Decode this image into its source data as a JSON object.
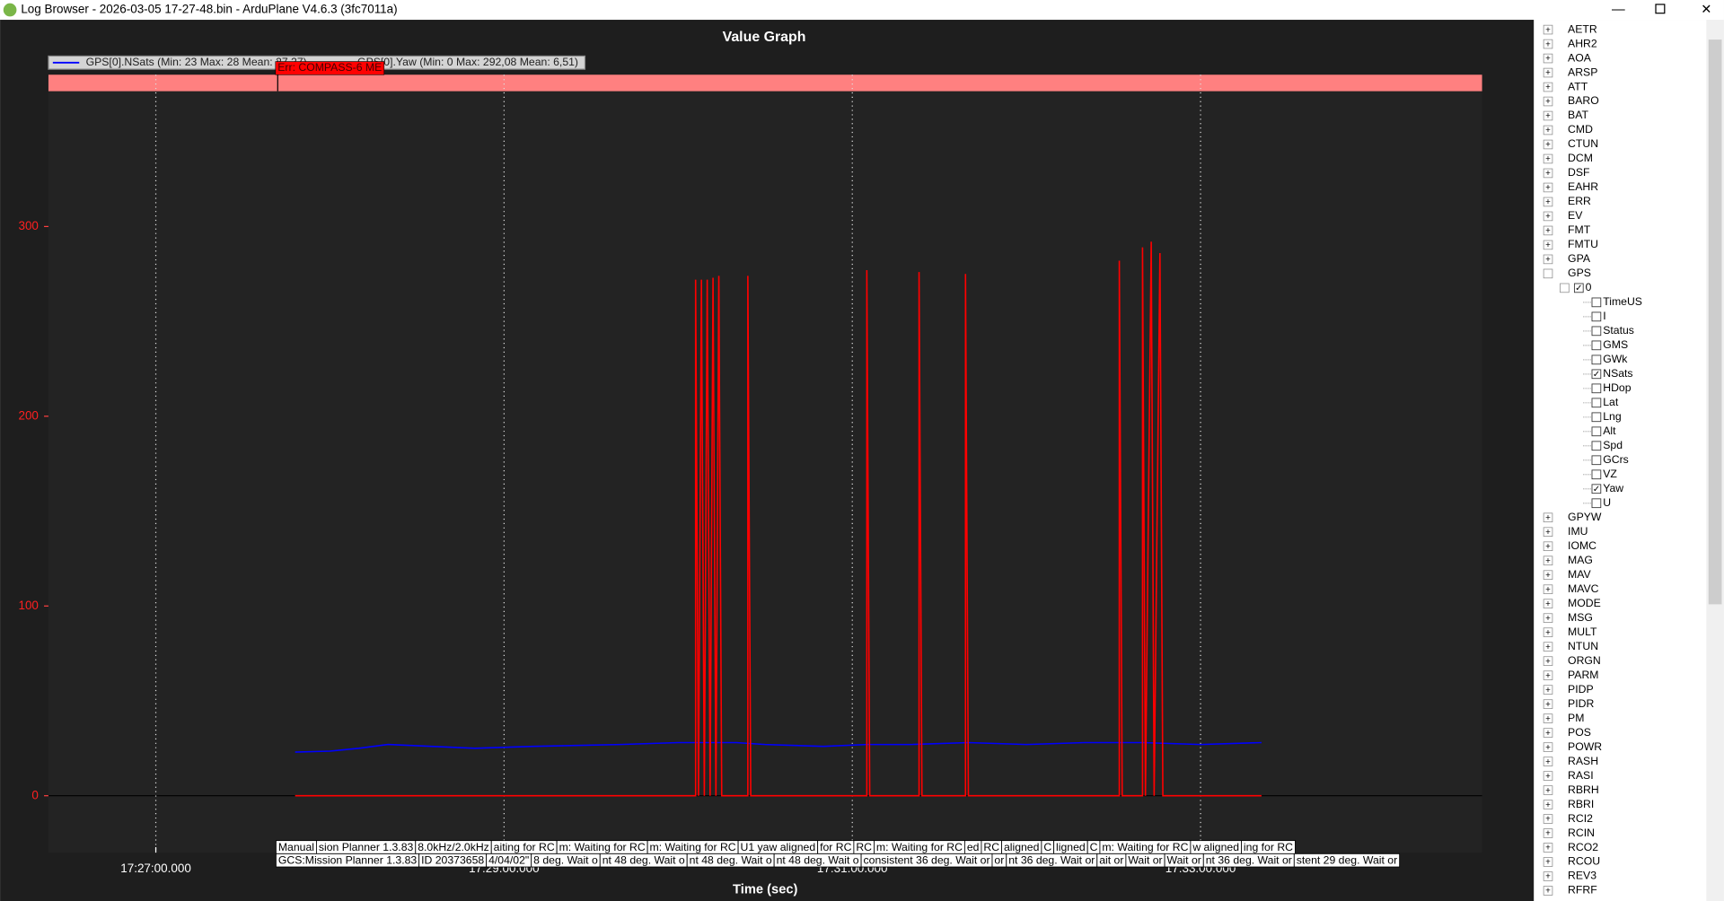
{
  "window_title": "Log Browser - 2026-03-05 17-27-48.bin - ArduPlane V4.6.3 (3fc7011a)",
  "chart_data": {
    "type": "line",
    "title": "Value Graph",
    "x_label": "Time (sec)",
    "series": [
      {
        "name": "GPS[0].NSats  (Min: 23 Max: 28 Mean: 27,27)",
        "color": "#0000ff",
        "x": [
          62868,
          62880,
          62890,
          62900,
          62915,
          62930,
          62950,
          62980,
          63000,
          63020,
          63030,
          63050,
          63065,
          63080,
          63100,
          63120,
          63140,
          63160,
          63180,
          63201
        ],
        "values": [
          23,
          23.5,
          25,
          27,
          26,
          25,
          26,
          27,
          28,
          28,
          27,
          26,
          27,
          27,
          28,
          27,
          28,
          28,
          27,
          28
        ]
      },
      {
        "name": "GPS[0].Yaw  (Min: 0 Max: 292,08 Mean: 6,51)",
        "color": "#ff0000",
        "x": [
          62868,
          63006,
          63006,
          63007,
          63008,
          63009,
          63010,
          63011,
          63012,
          63013,
          63014,
          63015,
          63024,
          63024,
          63025,
          63065,
          63065,
          63066,
          63083,
          63083,
          63084,
          63099,
          63099,
          63100,
          63152,
          63152,
          63153,
          63160,
          63160,
          63161,
          63163,
          63164,
          63166,
          63167,
          63201
        ],
        "values": [
          0,
          0,
          272,
          0,
          272,
          0,
          272,
          0,
          273,
          0,
          274,
          0,
          0,
          274,
          0,
          0,
          277,
          0,
          0,
          276,
          0,
          0,
          275,
          0,
          0,
          282,
          0,
          0,
          289,
          0,
          292,
          0,
          286,
          0,
          0
        ]
      }
    ],
    "xlim": [
      62783,
      63277
    ],
    "ylim": [
      -30,
      380
    ],
    "xticks": [
      {
        "value": 62820,
        "label": "17:27:00.000"
      },
      {
        "value": 62940,
        "label": "17:29:00.000"
      },
      {
        "value": 63060,
        "label": "17:31:00.000"
      },
      {
        "value": 63180,
        "label": "17:33:00.000"
      }
    ],
    "yticks": [
      0,
      100,
      200,
      300
    ],
    "grid": true,
    "annotations": [
      {
        "x": 62862,
        "text": "Err: COMPASS-6 ME"
      }
    ]
  },
  "messages": {
    "row1": [
      "Manual",
      "sion Planner 1.3.83",
      "8.0kHz/2.0kHz",
      "aiting for RC",
      "m: Waiting for RC",
      "m: Waiting for RC",
      "U1 yaw aligned",
      "for RC",
      "RC",
      "m: Waiting for RC",
      "ed",
      "RC",
      "aligned",
      "C",
      "ligned",
      "C",
      "m: Waiting for RC",
      "w aligned",
      "ing for RC"
    ],
    "row2": [
      "GCS:Mission Planner 1.3.83",
      "ID 20373658",
      "4/04/02\"",
      "8 deg. Wait o",
      "nt 48 deg. Wait o",
      "nt 48 deg. Wait o",
      "nt 48 deg. Wait o",
      "consistent 36 deg. Wait or",
      "or",
      "nt 36 deg. Wait or",
      "ait or",
      "Wait or",
      "Wait or",
      "nt 36 deg. Wait or",
      "stent 29 deg. Wait or"
    ]
  },
  "tree": {
    "before": [
      "AETR",
      "AHR2",
      "AOA",
      "ARSP",
      "ATT",
      "BARO",
      "BAT",
      "CMD",
      "CTUN",
      "DCM",
      "DSF",
      "EAHR",
      "ERR",
      "EV",
      "FMT",
      "FMTU",
      "GPA"
    ],
    "expanded": {
      "label": "GPS",
      "instance": {
        "label": "0",
        "fields": [
          {
            "label": "TimeUS",
            "checked": false
          },
          {
            "label": "I",
            "checked": false
          },
          {
            "label": "Status",
            "checked": false
          },
          {
            "label": "GMS",
            "checked": false
          },
          {
            "label": "GWk",
            "checked": false
          },
          {
            "label": "NSats",
            "checked": true
          },
          {
            "label": "HDop",
            "checked": false
          },
          {
            "label": "Lat",
            "checked": false
          },
          {
            "label": "Lng",
            "checked": false
          },
          {
            "label": "Alt",
            "checked": false
          },
          {
            "label": "Spd",
            "checked": false
          },
          {
            "label": "GCrs",
            "checked": false
          },
          {
            "label": "VZ",
            "checked": false
          },
          {
            "label": "Yaw",
            "checked": true
          },
          {
            "label": "U",
            "checked": false
          }
        ]
      }
    },
    "after": [
      "GPYW",
      "IMU",
      "IOMC",
      "MAG",
      "MAV",
      "MAVC",
      "MODE",
      "MSG",
      "MULT",
      "NTUN",
      "ORGN",
      "PARM",
      "PIDP",
      "PIDR",
      "PM",
      "POS",
      "POWR",
      "RASH",
      "RASI",
      "RBRH",
      "RBRI",
      "RCI2",
      "RCIN",
      "RCO2",
      "RCOU",
      "REV3",
      "RFRF"
    ]
  }
}
